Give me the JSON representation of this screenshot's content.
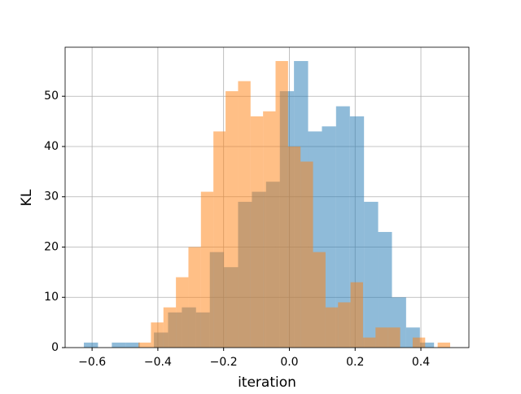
{
  "chart_data": {
    "type": "histogram",
    "xlabel": "iteration",
    "ylabel": "KL",
    "series": [
      {
        "color": "#1f77b4",
        "bins": [
          -0.625,
          -0.582,
          -0.54,
          -0.497,
          -0.455,
          -0.412,
          -0.369,
          -0.327,
          -0.284,
          -0.242,
          -0.199,
          -0.156,
          -0.114,
          -0.071,
          -0.029,
          0.014,
          0.057,
          0.099,
          0.142,
          0.184,
          0.227,
          0.27,
          0.312,
          0.355,
          0.397,
          0.44
        ],
        "values": [
          1,
          0,
          1,
          1,
          0,
          3,
          7,
          8,
          7,
          19,
          16,
          29,
          31,
          33,
          51,
          57,
          43,
          44,
          48,
          46,
          29,
          23,
          10,
          4,
          1
        ]
      },
      {
        "color": "#ff7f0e",
        "bins": [
          -0.459,
          -0.421,
          -0.383,
          -0.345,
          -0.307,
          -0.269,
          -0.231,
          -0.194,
          -0.156,
          -0.118,
          -0.08,
          -0.042,
          -0.004,
          0.034,
          0.072,
          0.11,
          0.148,
          0.186,
          0.224,
          0.262,
          0.299,
          0.337,
          0.375,
          0.413,
          0.451,
          0.489
        ],
        "values": [
          1,
          5,
          8,
          14,
          20,
          31,
          43,
          51,
          53,
          46,
          47,
          57,
          40,
          37,
          19,
          8,
          9,
          13,
          2,
          4,
          4,
          0,
          2,
          0,
          1
        ]
      }
    ],
    "xlim": [
      -0.682,
      0.546
    ],
    "ylim": [
      0,
      59.75
    ],
    "xticks": [
      {
        "value": -0.6,
        "label": "−0.6"
      },
      {
        "value": -0.4,
        "label": "−0.4"
      },
      {
        "value": -0.2,
        "label": "−0.2"
      },
      {
        "value": 0,
        "label": "0.0"
      },
      0.2,
      0.4
    ],
    "yticks": [
      0,
      10,
      20,
      30,
      40,
      50
    ],
    "grid": true,
    "opacity": 0.5
  }
}
